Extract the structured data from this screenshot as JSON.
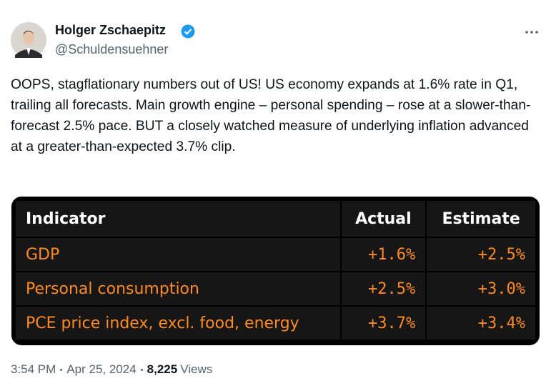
{
  "author": {
    "name": "Holger Zschaepitz",
    "handle": "@Schuldensuehner"
  },
  "tweet": {
    "text": "OOPS, stagflationary numbers out of US! US economy expands at 1.6% rate in Q1, trailing all forecasts. Main growth engine – personal spending – rose at a slower-than-forecast 2.5% pace. BUT a closely watched measure of underlying inflation advanced at a greater-than-expected 3.7% clip."
  },
  "table": {
    "header": [
      "Indicator",
      "Actual",
      "Estimate"
    ],
    "rows": [
      [
        "GDP",
        "+1.6%",
        "+2.5%"
      ],
      [
        "Personal consumption",
        "+2.5%",
        "+3.0%"
      ],
      [
        "PCE price index, excl. food, energy",
        "+3.7%",
        "+3.4%"
      ]
    ]
  },
  "footer": {
    "time": "3:54 PM",
    "date": "Apr 25, 2024",
    "views": "8,225",
    "views_label": "Views"
  }
}
